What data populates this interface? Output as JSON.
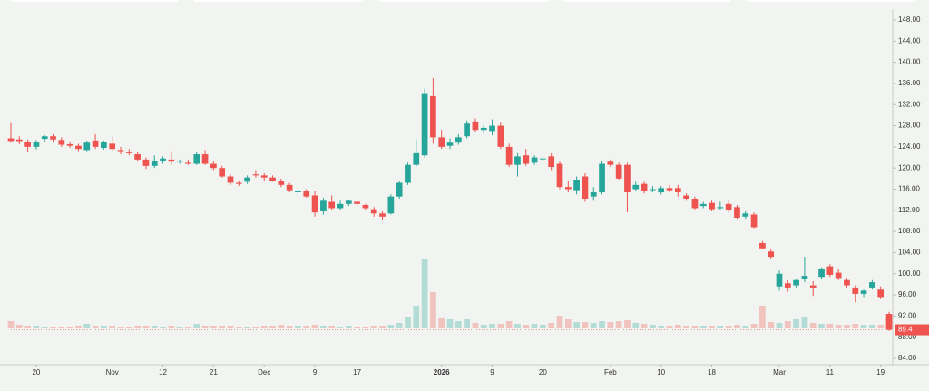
{
  "chart_data": {
    "type": "candlestick",
    "up_color": "#26a69a",
    "down_color": "#ef5350",
    "ohlc": [
      [
        125.6,
        128.5,
        124.8,
        125.1
      ],
      [
        125.4,
        126,
        124.5,
        125.1
      ],
      [
        125,
        125.4,
        123,
        124
      ],
      [
        124,
        125.3,
        123.5,
        125
      ],
      [
        125.5,
        126.2,
        125,
        126
      ],
      [
        126,
        126.4,
        125,
        125.4
      ],
      [
        125.3,
        125.8,
        124,
        124.4
      ],
      [
        124.5,
        125,
        123.8,
        124.2
      ],
      [
        124.2,
        124.6,
        123.2,
        123.6
      ],
      [
        123.4,
        125.2,
        123.2,
        124.8
      ],
      [
        125.2,
        126.4,
        123.6,
        124
      ],
      [
        123.8,
        125.2,
        123.5,
        124.9
      ],
      [
        124.6,
        126,
        123.2,
        123.6
      ],
      [
        123.4,
        124,
        122.6,
        123.2
      ],
      [
        123,
        123.6,
        122.4,
        122.8
      ],
      [
        122.6,
        123,
        121.2,
        121.6
      ],
      [
        121.6,
        122,
        119.8,
        120.4
      ],
      [
        120.4,
        122.4,
        120,
        121.4
      ],
      [
        121.4,
        122.2,
        120.8,
        121.8
      ],
      [
        121.6,
        123.2,
        120.6,
        121.2
      ],
      [
        121.2,
        121.6,
        120.8,
        121.4
      ],
      [
        121,
        121.6,
        120.6,
        120.8
      ],
      [
        120.8,
        123,
        120.6,
        122.6
      ],
      [
        122.6,
        123.4,
        120.6,
        120.8
      ],
      [
        120.8,
        121.2,
        119.6,
        120
      ],
      [
        120,
        120.4,
        118.2,
        118.4
      ],
      [
        118.4,
        118.8,
        116.8,
        117.2
      ],
      [
        117.2,
        117.6,
        116.6,
        117
      ],
      [
        117.4,
        118.6,
        117,
        118.2
      ],
      [
        118.8,
        119.6,
        118.2,
        118.6
      ],
      [
        118.6,
        119,
        117.6,
        118.2
      ],
      [
        118.2,
        118.6,
        117.4,
        117.6
      ],
      [
        117.6,
        118,
        116.4,
        116.8
      ],
      [
        116.8,
        117.2,
        115.4,
        115.8
      ],
      [
        115.4,
        116.2,
        114.8,
        115.6
      ],
      [
        115.6,
        116,
        114.4,
        114.6
      ],
      [
        114.8,
        115.6,
        110.8,
        111.6
      ],
      [
        111.8,
        114.4,
        111.2,
        113.8
      ],
      [
        113.6,
        114.8,
        112,
        112.4
      ],
      [
        112.4,
        113.8,
        112,
        113.2
      ],
      [
        113.2,
        114,
        112.8,
        113.8
      ],
      [
        113.6,
        113.8,
        112.8,
        113.2
      ],
      [
        113,
        113.2,
        112,
        112.4
      ],
      [
        112.2,
        112.6,
        110.8,
        111.4
      ],
      [
        111.4,
        111.8,
        110.2,
        110.8
      ],
      [
        111.4,
        115,
        111.2,
        114.6
      ],
      [
        114.6,
        117.6,
        114.2,
        117.2
      ],
      [
        117.2,
        121,
        116.8,
        120.6
      ],
      [
        120.6,
        125.4,
        120.2,
        122.8
      ],
      [
        122.4,
        135,
        122,
        134
      ],
      [
        133.6,
        137,
        124.6,
        125.8
      ],
      [
        125.8,
        127.2,
        123.6,
        124
      ],
      [
        124.2,
        125.6,
        123.6,
        124.8
      ],
      [
        124.8,
        126.4,
        124.4,
        125.8
      ],
      [
        126,
        129,
        125.6,
        128.4
      ],
      [
        128.8,
        129.4,
        126.8,
        127.2
      ],
      [
        127.2,
        128.2,
        126.6,
        127.6
      ],
      [
        127,
        129.2,
        126.2,
        128
      ],
      [
        128,
        128.6,
        123.6,
        124
      ],
      [
        124,
        124.6,
        120.2,
        120.6
      ],
      [
        120.6,
        122.8,
        118.4,
        122.2
      ],
      [
        122.4,
        123.6,
        120.4,
        120.8
      ],
      [
        121,
        122.4,
        120.6,
        122
      ],
      [
        121.8,
        122.2,
        121.2,
        121.8
      ],
      [
        122.2,
        122.8,
        119.6,
        120.2
      ],
      [
        120.8,
        121.2,
        116,
        116.4
      ],
      [
        116.4,
        117.6,
        115.4,
        116
      ],
      [
        115.8,
        118.4,
        115,
        117.8
      ],
      [
        118.4,
        119,
        113.6,
        114.2
      ],
      [
        114.6,
        116.4,
        113.8,
        115.4
      ],
      [
        115.4,
        121.4,
        115,
        120.8
      ],
      [
        121.2,
        121.6,
        120.2,
        120.6
      ],
      [
        120.6,
        121,
        117.8,
        118
      ],
      [
        120.6,
        121,
        111.6,
        115.4
      ],
      [
        116,
        117.4,
        115.6,
        116.8
      ],
      [
        117,
        117.4,
        115.2,
        115.6
      ],
      [
        116,
        116.6,
        115.4,
        116
      ],
      [
        115.4,
        116.6,
        115,
        116.2
      ],
      [
        116.2,
        116.8,
        115.4,
        115.8
      ],
      [
        116.2,
        116.8,
        114.6,
        115.4
      ],
      [
        114.8,
        115.2,
        113.8,
        114.2
      ],
      [
        114.2,
        114.6,
        112,
        112.4
      ],
      [
        112.8,
        113.6,
        112.4,
        113.2
      ],
      [
        113.4,
        113.8,
        111.8,
        112.2
      ],
      [
        112.4,
        113.6,
        112,
        112.6
      ],
      [
        113.2,
        113.8,
        111.6,
        112
      ],
      [
        112.6,
        113,
        110.4,
        110.6
      ],
      [
        110.8,
        111.8,
        110.4,
        111.4
      ],
      [
        111.2,
        111.6,
        108.6,
        108.8
      ],
      [
        105.8,
        106.2,
        104.6,
        104.8
      ],
      [
        104.2,
        104.6,
        102.8,
        103.2
      ],
      [
        97.6,
        100.6,
        96.8,
        100
      ],
      [
        98.2,
        98.8,
        96.6,
        97.4
      ],
      [
        97.8,
        99,
        97.2,
        98.8
      ],
      [
        99,
        103.2,
        98.4,
        99.6
      ],
      [
        97.8,
        98.6,
        95.8,
        97.4
      ],
      [
        99.4,
        101.2,
        99,
        101
      ],
      [
        101.4,
        101.8,
        99.4,
        99.8
      ],
      [
        100.2,
        100.8,
        98.8,
        99.2
      ],
      [
        98.8,
        99.2,
        97.4,
        97.8
      ],
      [
        97.4,
        97.8,
        94.6,
        96.2
      ],
      [
        96.2,
        97,
        95.6,
        96.8
      ],
      [
        97.4,
        98.8,
        97,
        98.4
      ],
      [
        97,
        97.6,
        95.2,
        95.6
      ],
      [
        92.4,
        92.8,
        89.2,
        89.4
      ]
    ],
    "volume": [
      8,
      4,
      3,
      3,
      2,
      2,
      2,
      2,
      3,
      5,
      3,
      3,
      3,
      2,
      2,
      3,
      3,
      3,
      2,
      3,
      2,
      2,
      5,
      3,
      3,
      3,
      3,
      2,
      2,
      2,
      3,
      3,
      4,
      3,
      3,
      3,
      4,
      3,
      3,
      2,
      3,
      2,
      2,
      3,
      3,
      4,
      6,
      13,
      25,
      77,
      40,
      12,
      10,
      8,
      10,
      6,
      4,
      5,
      5,
      8,
      5,
      4,
      5,
      4,
      6,
      14,
      10,
      7,
      7,
      6,
      8,
      7,
      8,
      9,
      6,
      5,
      4,
      3,
      3,
      4,
      3,
      3,
      3,
      3,
      3,
      3,
      4,
      3,
      5,
      25,
      7,
      6,
      8,
      10,
      13,
      6,
      5,
      5,
      4,
      4,
      5,
      4,
      4,
      4,
      12
    ],
    "xlim": [
      0,
      104
    ],
    "xticks": [
      {
        "value": 3,
        "label": "20"
      },
      {
        "value": 12,
        "label": "Nov"
      },
      {
        "value": 18,
        "label": "12"
      },
      {
        "value": 24,
        "label": "21"
      },
      {
        "value": 30,
        "label": "Dec"
      },
      {
        "value": 36,
        "label": "9"
      },
      {
        "value": 41,
        "label": "17"
      },
      {
        "value": 51,
        "label": "2026"
      },
      {
        "value": 57,
        "label": "9"
      },
      {
        "value": 63,
        "label": "20"
      },
      {
        "value": 71,
        "label": "Feb"
      },
      {
        "value": 77,
        "label": "10"
      },
      {
        "value": 83,
        "label": "18"
      },
      {
        "value": 91,
        "label": "Mar"
      },
      {
        "value": 97,
        "label": "11"
      },
      {
        "value": 103,
        "label": "19"
      }
    ],
    "ylim": [
      84,
      148
    ],
    "yticks": [
      {
        "value": 84,
        "label": "84.00"
      },
      {
        "value": 88,
        "label": "88.00"
      },
      {
        "value": 92,
        "label": "92.00"
      },
      {
        "value": 96,
        "label": "96.00"
      },
      {
        "value": 100,
        "label": "100.00"
      },
      {
        "value": 104,
        "label": "104.00"
      },
      {
        "value": 108,
        "label": "108.00"
      },
      {
        "value": 112,
        "label": "112.00"
      },
      {
        "value": 116,
        "label": "116.00"
      },
      {
        "value": 120,
        "label": "120.00"
      },
      {
        "value": 124,
        "label": "124.00"
      },
      {
        "value": 128,
        "label": "128.00"
      },
      {
        "value": 132,
        "label": "132.00"
      },
      {
        "value": 136,
        "label": "136.00"
      },
      {
        "value": 140,
        "label": "140.00"
      },
      {
        "value": 144,
        "label": "144.00"
      },
      {
        "value": 148,
        "label": "148.00"
      }
    ],
    "last_price": 89.4
  }
}
